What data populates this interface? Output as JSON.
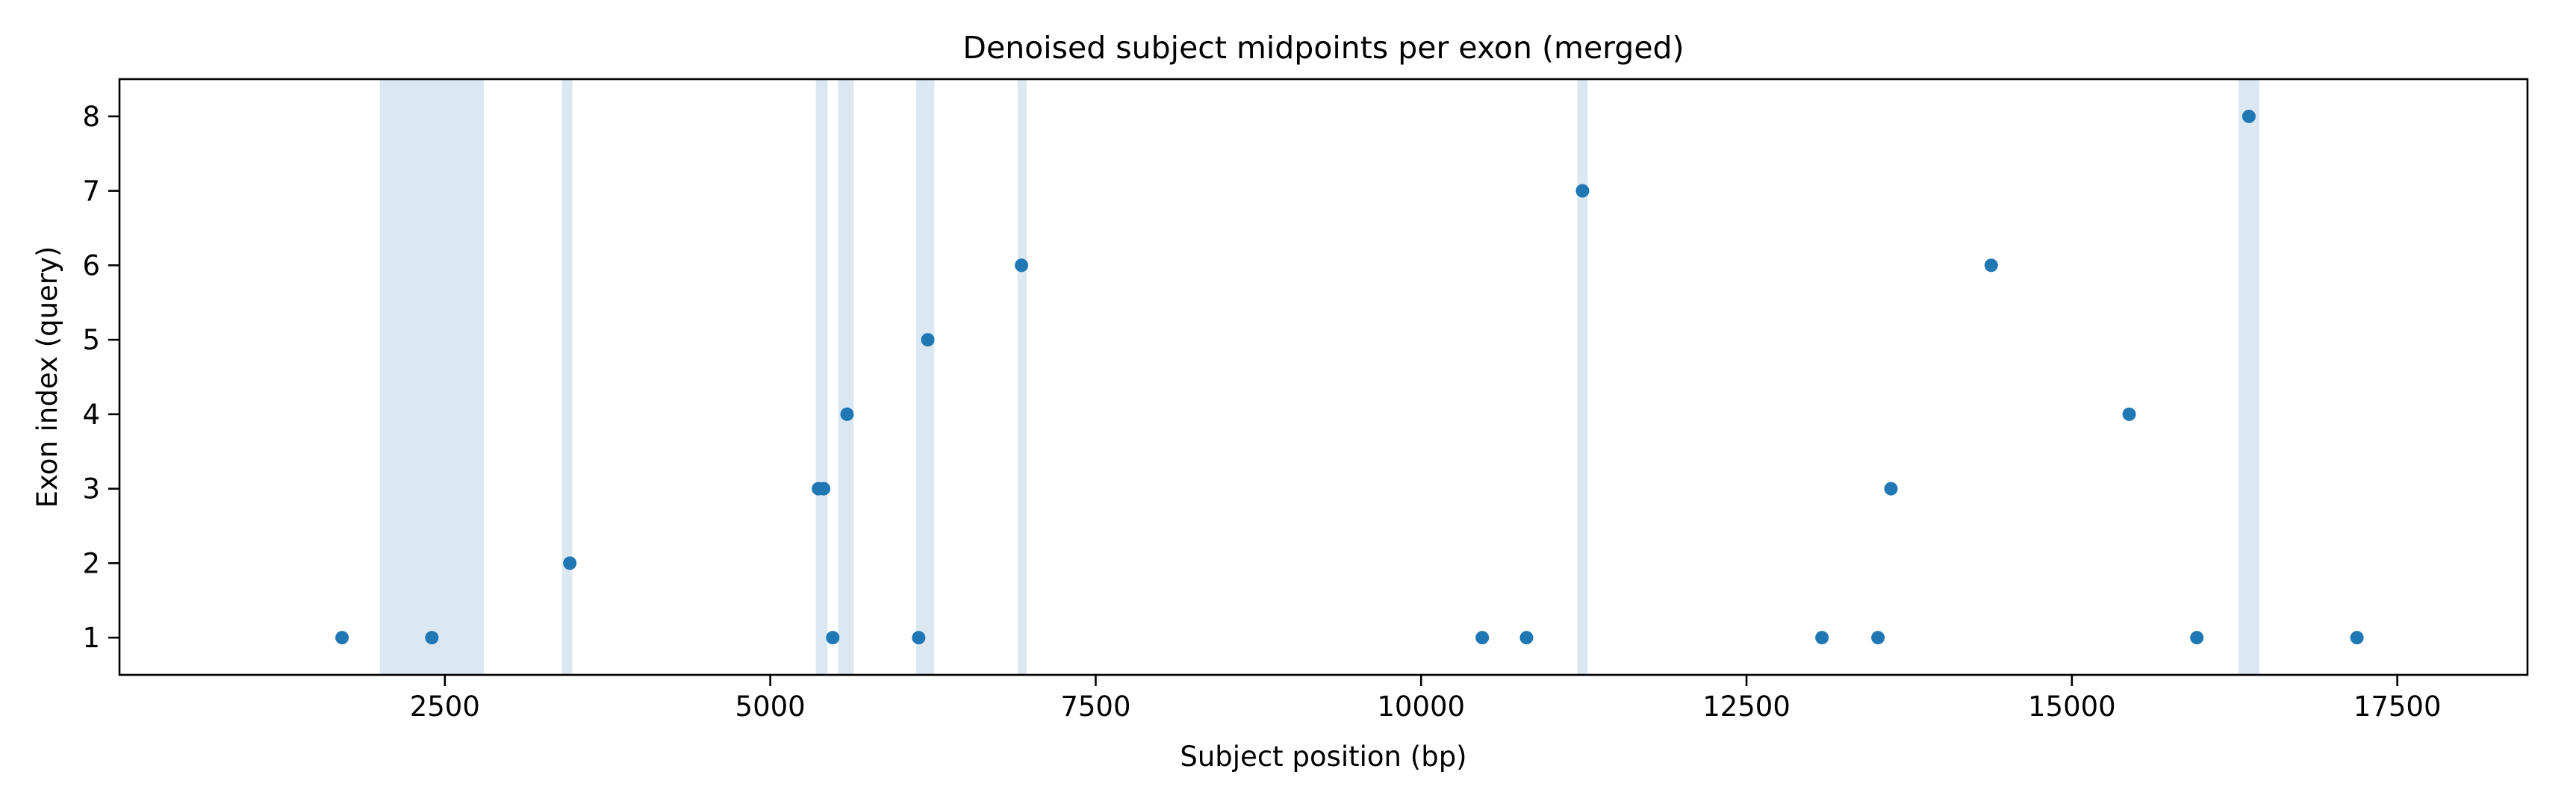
{
  "chart_data": {
    "type": "scatter",
    "title": "Denoised subject midpoints per exon (merged)",
    "xlabel": "Subject position (bp)",
    "ylabel": "Exon index (query)",
    "xlim": [
      0,
      18500
    ],
    "ylim": [
      0.5,
      8.5
    ],
    "xticks": [
      2500,
      5000,
      7500,
      10000,
      12500,
      15000,
      17500
    ],
    "yticks": [
      1,
      2,
      3,
      4,
      5,
      6,
      7,
      8
    ],
    "grid": false,
    "legend": "none",
    "colors": {
      "points": "#1f77b4",
      "bands": "#dbe8f2"
    },
    "shaded_regions": [
      [
        2000,
        2800
      ],
      [
        3400,
        3480
      ],
      [
        5350,
        5440
      ],
      [
        5520,
        5640
      ],
      [
        6120,
        6260
      ],
      [
        6900,
        6970
      ],
      [
        11200,
        11280
      ],
      [
        16280,
        16440
      ]
    ],
    "points": [
      {
        "x": 1710,
        "y": 1
      },
      {
        "x": 2400,
        "y": 1
      },
      {
        "x": 3460,
        "y": 2
      },
      {
        "x": 5370,
        "y": 3
      },
      {
        "x": 5410,
        "y": 3
      },
      {
        "x": 5480,
        "y": 1
      },
      {
        "x": 5590,
        "y": 4
      },
      {
        "x": 6140,
        "y": 1
      },
      {
        "x": 6210,
        "y": 5
      },
      {
        "x": 6930,
        "y": 6
      },
      {
        "x": 10470,
        "y": 1
      },
      {
        "x": 10810,
        "y": 1
      },
      {
        "x": 11240,
        "y": 7
      },
      {
        "x": 13080,
        "y": 1
      },
      {
        "x": 13510,
        "y": 1
      },
      {
        "x": 13610,
        "y": 3
      },
      {
        "x": 14380,
        "y": 6
      },
      {
        "x": 15440,
        "y": 4
      },
      {
        "x": 15960,
        "y": 1
      },
      {
        "x": 16360,
        "y": 8
      },
      {
        "x": 17190,
        "y": 1
      }
    ]
  }
}
